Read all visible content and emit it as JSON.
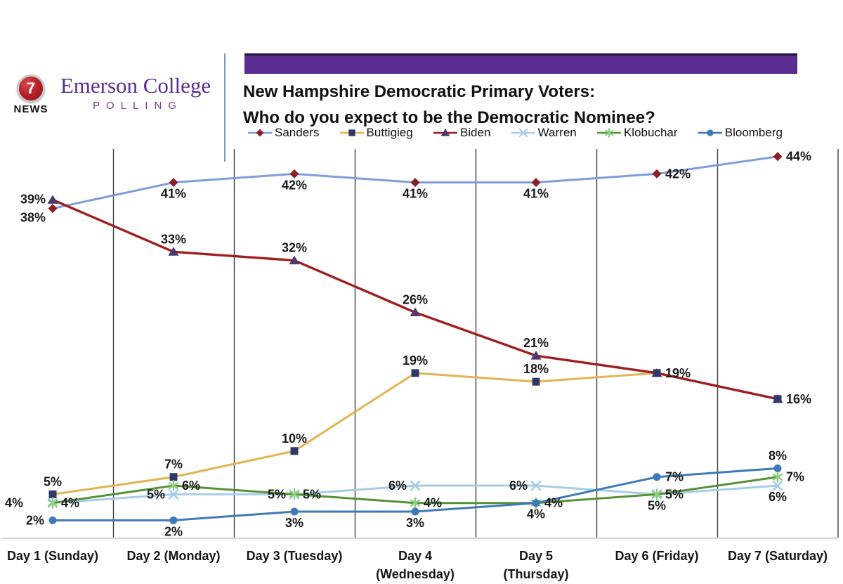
{
  "header": {
    "banner_color": "#5b2c92",
    "title_line1": "New Hampshire Democratic Primary Voters:",
    "title_line2": "Who do you expect to be the Democratic Nominee?"
  },
  "logo": {
    "channel_number": "7",
    "news_label": "NEWS",
    "brand_name": "Emerson College",
    "brand_sub": "POLLING",
    "brand_color": "#5b2d90"
  },
  "chart_data": {
    "type": "line",
    "title": "New Hampshire Democratic Primary Voters: Who do you expect to be the Democratic Nominee?",
    "categories": [
      "Day 1 (Sunday)",
      "Day 2 (Monday)",
      "Day 3 (Tuesday)",
      "Day 4\n(Wednesday)",
      "Day 5\n(Thursday)",
      "Day 6 (Friday)",
      "Day 7 (Saturday)"
    ],
    "ylim": [
      0,
      45
    ],
    "grid": "vertical-only",
    "legend_position": "top",
    "axis_color": "#d8d8d8",
    "gridline_color": "#3f3f3f",
    "label_color": "#1a1a1a",
    "series": [
      {
        "name": "Sanders",
        "color": "#7d9ddb",
        "marker": "diamond",
        "marker_color": "#8c1f28",
        "values": [
          38,
          41,
          42,
          41,
          41,
          42,
          44
        ],
        "labels": [
          "38%",
          "41%",
          "42%",
          "41%",
          "41%",
          "42%",
          "44%"
        ],
        "label_placements": [
          "left-down",
          "below",
          "below",
          "below",
          "below",
          "right",
          "right"
        ]
      },
      {
        "name": "Buttigieg",
        "color": "#e2b453",
        "marker": "square",
        "marker_color": "#2e3968",
        "values": [
          5,
          7,
          10,
          19,
          18,
          19,
          16
        ],
        "labels": [
          "5%",
          "7%",
          "10%",
          "19%",
          "18%",
          "",
          ""
        ],
        "label_placements": [
          "above",
          "above",
          "above",
          "above",
          "above",
          "none",
          "none"
        ]
      },
      {
        "name": "Biden",
        "color": "#a01e1f",
        "marker": "triangle",
        "marker_color": "#4b3a6b",
        "values": [
          39,
          33,
          32,
          26,
          21,
          19,
          16
        ],
        "labels": [
          "39%",
          "33%",
          "32%",
          "26%",
          "21%",
          "19%",
          "16%"
        ],
        "label_placements": [
          "left-up",
          "above",
          "above",
          "above",
          "above",
          "right",
          "right"
        ]
      },
      {
        "name": "Warren",
        "color": "#a6cde8",
        "marker": "x",
        "marker_color": "#a6cde8",
        "values": [
          4,
          5,
          5,
          6,
          6,
          5,
          6
        ],
        "labels": [
          "4%",
          "5%",
          "5%",
          "6%",
          "6%",
          "5%",
          "6%"
        ],
        "label_placements": [
          "far-left",
          "left",
          "left",
          "left",
          "left",
          "below",
          "below"
        ]
      },
      {
        "name": "Klobuchar",
        "color": "#569136",
        "marker": "asterisk",
        "marker_color": "#8fce7e",
        "values": [
          4,
          6,
          5,
          4,
          4,
          5,
          7
        ],
        "labels": [
          "4%",
          "6%",
          "5%",
          "4%",
          "4%",
          "5%",
          "7%"
        ],
        "label_placements": [
          "right",
          "right",
          "right",
          "right",
          "right",
          "right",
          "right"
        ]
      },
      {
        "name": "Bloomberg",
        "color": "#3d7ab8",
        "marker": "circle",
        "marker_color": "#3d7ab8",
        "values": [
          2,
          2,
          3,
          3,
          4,
          7,
          8
        ],
        "labels": [
          "2%",
          "2%",
          "3%",
          "3%",
          "4%",
          "7%",
          "8%"
        ],
        "label_placements": [
          "left",
          "below",
          "below",
          "below",
          "below",
          "right",
          "above"
        ]
      }
    ]
  }
}
